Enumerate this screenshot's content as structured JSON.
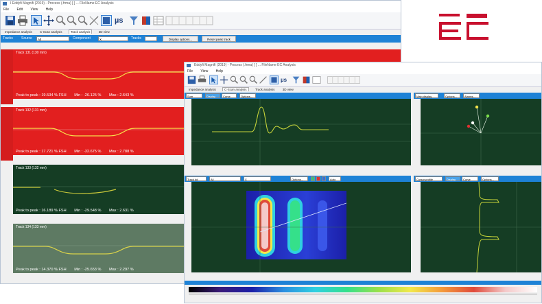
{
  "colors": {
    "red_track": "#e21f1f",
    "dark_green": "#153d24",
    "mid_green": "#5e7a63",
    "accent_blue": "#1e82d6",
    "brand_red": "#c8102e"
  },
  "brand": {
    "logo_text": "EC"
  },
  "window1": {
    "title": "I Eddyfi Magnifi (2019) - Process (.frma) [ ] ... FileName EC Analysis",
    "menu": [
      "File",
      "Edit",
      "View",
      "Help"
    ],
    "tabs": [
      "Impedance analysis",
      "C-Scan analysis",
      "Track analysis",
      "3D view"
    ],
    "toolbar_icons": [
      "save-icon",
      "print-icon",
      "pointer-icon",
      "move-icon",
      "zoom-in-icon",
      "zoom-out-icon",
      "zoom-fit-icon",
      "measure-icon",
      "layout-icon",
      "microsecond-icon",
      "filter-icon",
      "palette-icon",
      "table-icon",
      "grid-icon"
    ],
    "toolbar_text": {
      "us": "µs"
    },
    "strip": {
      "tracks_label": "Tracks",
      "source_label": "Source",
      "source_value": "All",
      "component_label": "Component",
      "component_value": "X",
      "tracks2_label": "Tracks",
      "display_button": "Display options...",
      "reset_button": "Reset peak track"
    },
    "tracks": [
      {
        "name": "Track 131 (130 mm)",
        "p2p": "Peak to peak : 19.534 % FSH",
        "min": "Min : -26.125 %",
        "max": "Max : 2.643 %"
      },
      {
        "name": "Track 132 (131 mm)",
        "p2p": "Peak to peak : 17.721 % FSH",
        "min": "Min : -32.675 %",
        "max": "Max : 2.788 %"
      },
      {
        "name": "Track 133 (132 mm)",
        "p2p": "Peak to peak : 16.189 % FSH",
        "min": "Min : -29.548 %",
        "max": "Max : 2.631 %"
      },
      {
        "name": "Track 134 (133 mm)",
        "p2p": "Peak to peak : 14.370 % FSH",
        "min": "Min : -25.653 %",
        "max": "Max : 2.297 %"
      }
    ]
  },
  "window2": {
    "title": "Eddyfi Magnifi (2019) - Process (.frma) [ ] ... FileName EC Analysis",
    "menu": [
      "File",
      "View",
      "Help"
    ],
    "tabs": [
      "Impedance analysis",
      "C-Scan analysis",
      "Track analysis",
      "3D view"
    ],
    "toolbar_text": {
      "us": "µs"
    },
    "top_left_head": {
      "a": "Sum",
      "display": "Display",
      "b": "Curve",
      "options": "Options..."
    },
    "top_right_head": {
      "a": "Main display",
      "options": "Options...",
      "b": "Alarms..."
    },
    "bottom_left_head": {
      "a": "Track ##",
      "b": "All",
      "c": "X",
      "options": "Options...",
      "d": "Auto"
    },
    "bottom_right_head": {
      "a": "Cursor profile",
      "display": "Display",
      "b": "Curve",
      "options": "Options..."
    }
  }
}
